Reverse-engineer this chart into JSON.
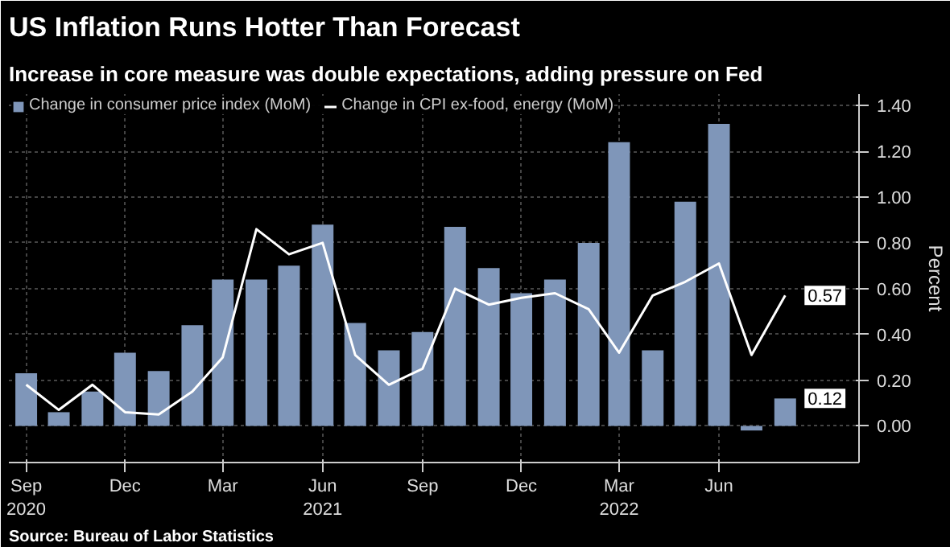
{
  "chart_data": {
    "type": "bar",
    "title": "US Inflation Runs Hotter Than Forecast",
    "subtitle": "Increase in core measure was double expectations, adding pressure on Fed",
    "ylabel": "Percent",
    "x": [
      "2020-09",
      "2020-10",
      "2020-11",
      "2020-12",
      "2021-01",
      "2021-02",
      "2021-03",
      "2021-04",
      "2021-05",
      "2021-06",
      "2021-07",
      "2021-08",
      "2021-09",
      "2021-10",
      "2021-11",
      "2021-12",
      "2022-01",
      "2022-02",
      "2022-03",
      "2022-04",
      "2022-05",
      "2022-06",
      "2022-07",
      "2022-08"
    ],
    "series": [
      {
        "name": "Change in consumer price index (MoM)",
        "color": "#7f96b9",
        "values": [
          0.23,
          0.06,
          0.15,
          0.32,
          0.24,
          0.44,
          0.64,
          0.64,
          0.7,
          0.88,
          0.45,
          0.33,
          0.41,
          0.87,
          0.69,
          0.58,
          0.64,
          0.8,
          1.24,
          0.33,
          0.98,
          1.32,
          -0.02,
          0.12
        ]
      },
      {
        "name": "Change in CPI ex-food, energy (MoM)",
        "type": "line",
        "color": "#ffffff",
        "values": [
          0.18,
          0.07,
          0.18,
          0.06,
          0.05,
          0.15,
          0.3,
          0.86,
          0.75,
          0.8,
          0.31,
          0.18,
          0.25,
          0.6,
          0.53,
          0.56,
          0.58,
          0.51,
          0.32,
          0.57,
          0.63,
          0.71,
          0.31,
          0.57
        ]
      }
    ],
    "xlim": [
      "2020-08-16",
      "2022-10-08"
    ],
    "xticks": [
      {
        "value": "2020-09",
        "label": "Sep\n2020"
      },
      {
        "value": "2020-12",
        "label": "Dec"
      },
      {
        "value": "2021-03",
        "label": "Mar"
      },
      {
        "value": "2021-06",
        "label": "Jun\n2021"
      },
      {
        "value": "2021-09",
        "label": "Sep"
      },
      {
        "value": "2021-12",
        "label": "Dec"
      },
      {
        "value": "2022-03",
        "label": "Mar\n2022"
      },
      {
        "value": "2022-06",
        "label": "Jun"
      }
    ],
    "ylim": [
      -0.16,
      1.45
    ],
    "yticks": [
      {
        "value": 0,
        "label": "0.00"
      },
      {
        "value": 0.2,
        "label": "0.20"
      },
      {
        "value": 0.4,
        "label": "0.40"
      },
      {
        "value": 0.6,
        "label": "0.60"
      },
      {
        "value": 0.8,
        "label": "0.80"
      },
      {
        "value": 1.0,
        "label": "1.00"
      },
      {
        "value": 1.2,
        "label": "1.20"
      },
      {
        "value": 1.4,
        "label": "1.40"
      }
    ],
    "grid": true,
    "legend": "top left",
    "annotations": [
      {
        "text": "0.57",
        "x": "2022-08",
        "y": 0.57
      },
      {
        "text": "0.12",
        "x": "2022-08",
        "y": 0.12
      },
      "Source: Bureau of Labor Statistics"
    ]
  }
}
